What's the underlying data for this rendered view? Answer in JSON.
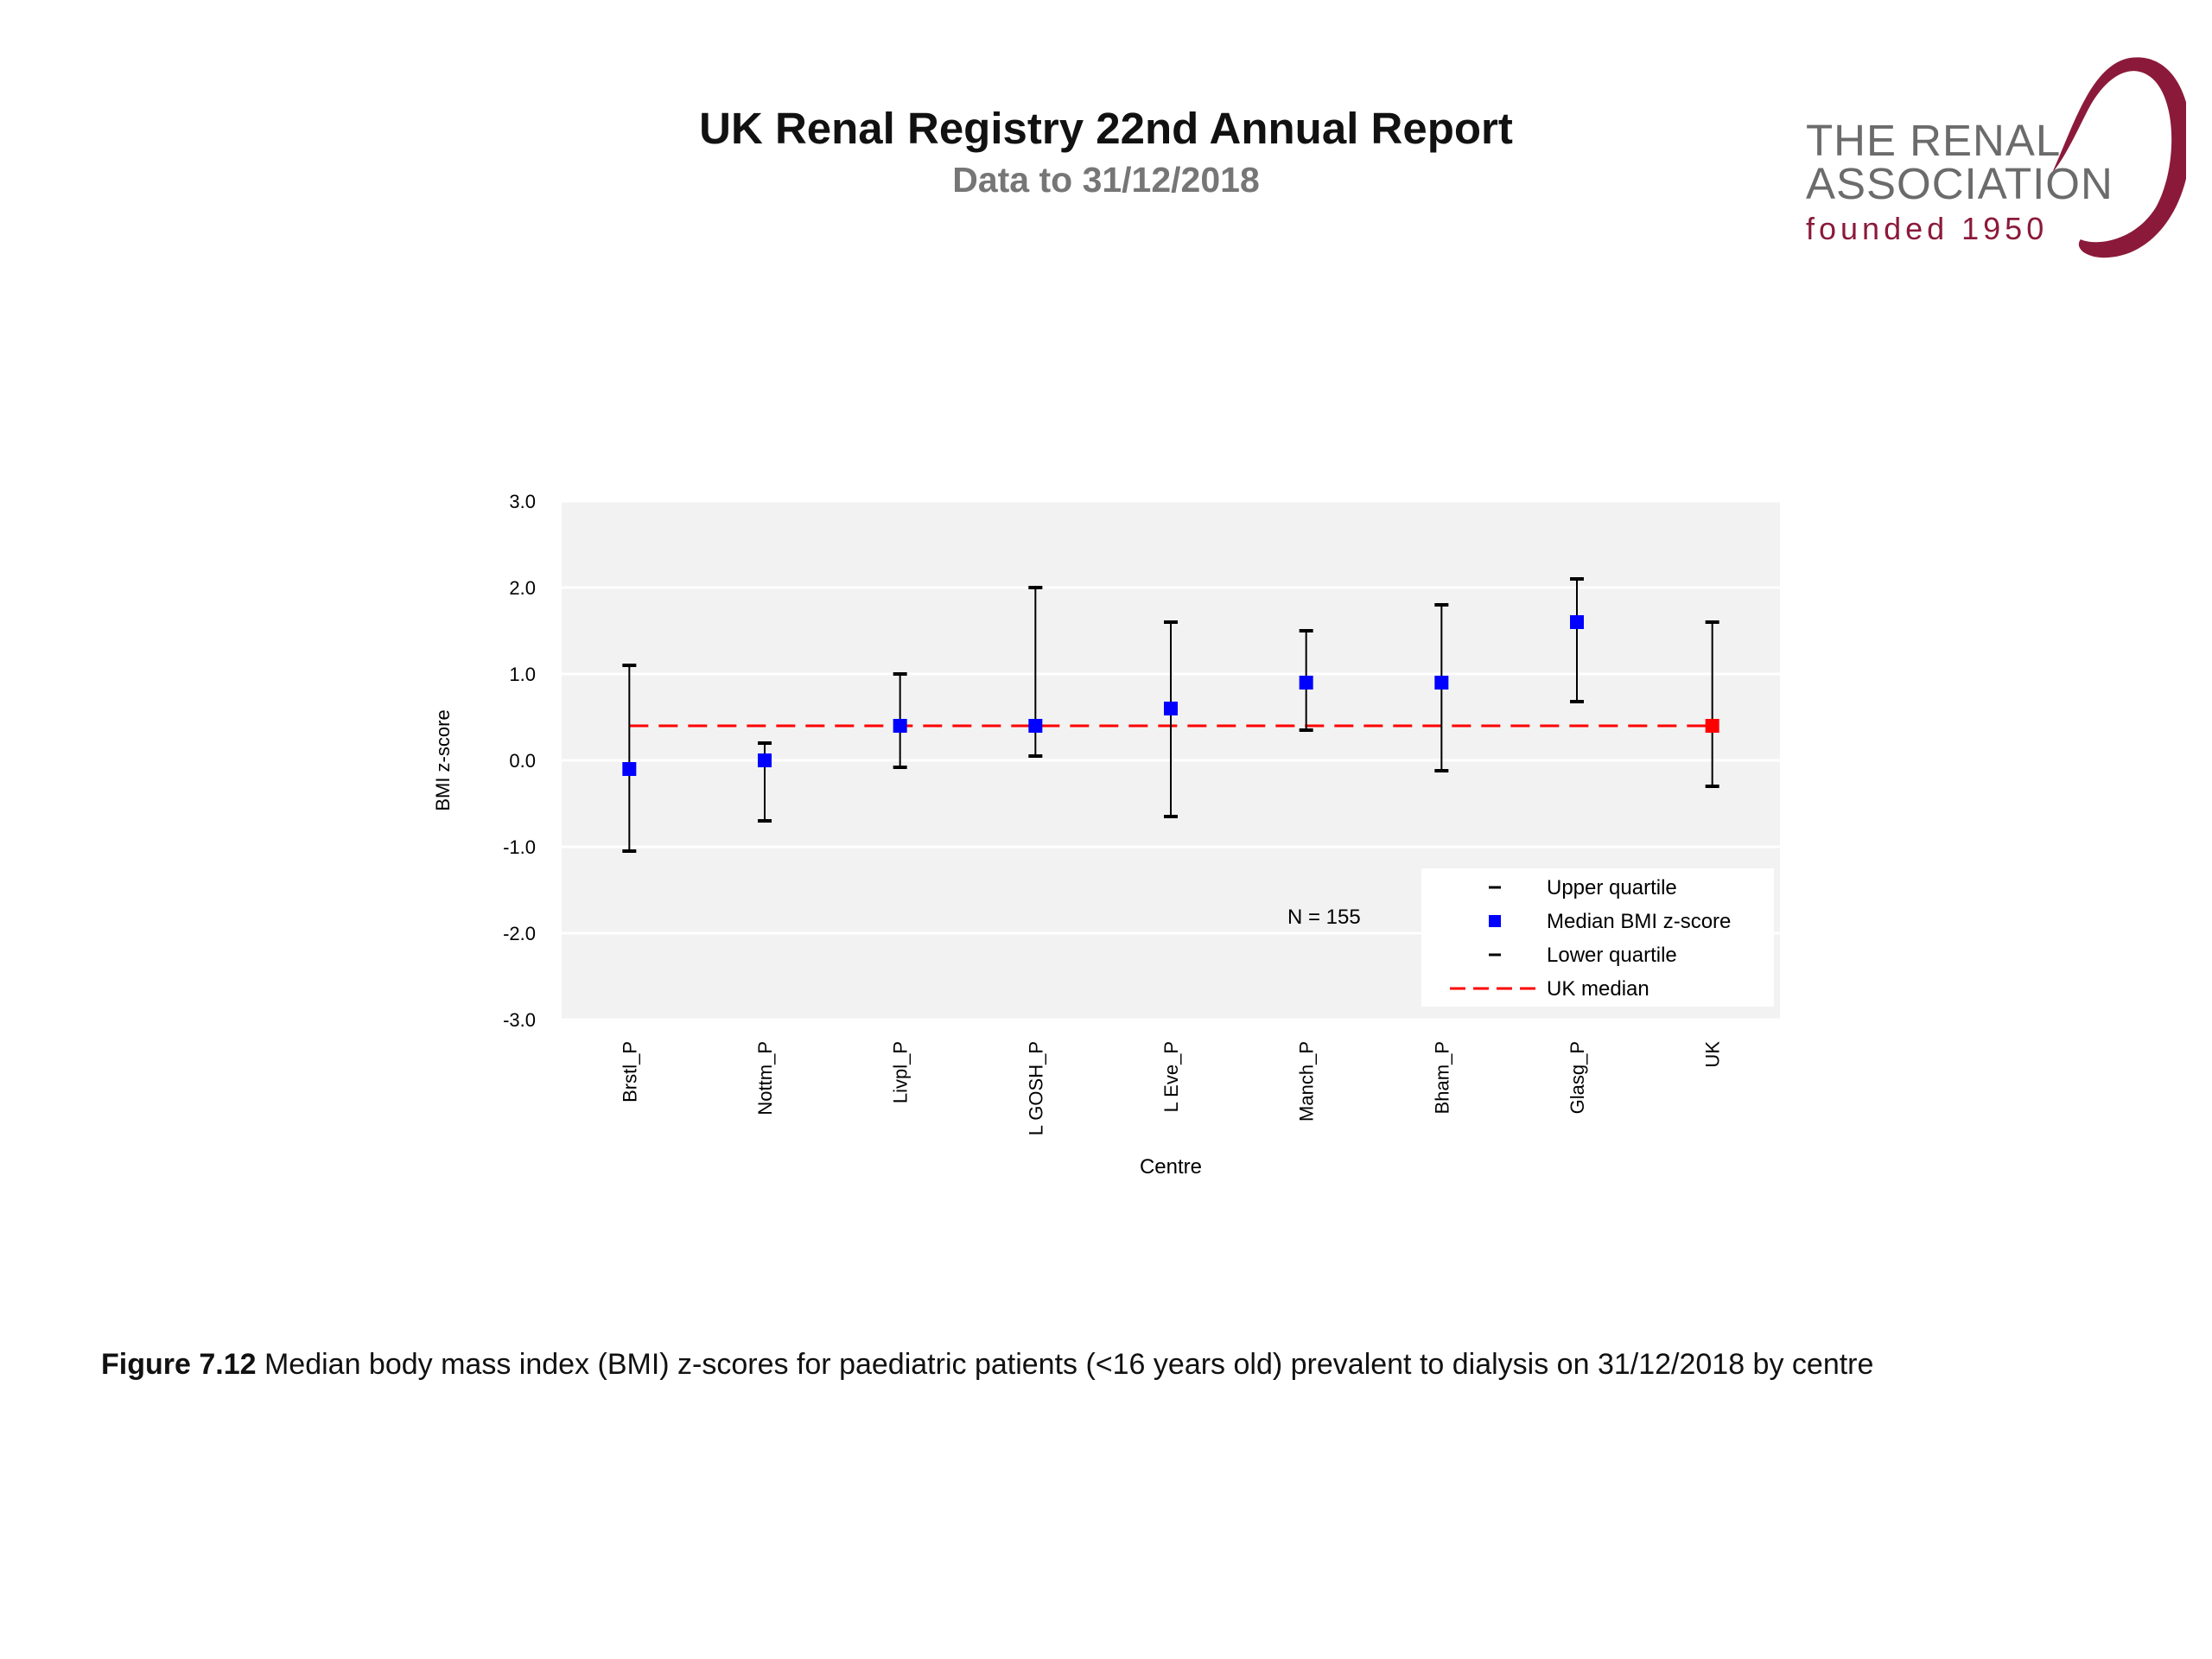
{
  "header": {
    "title": "UK Renal Registry 22nd Annual Report",
    "subtitle": "Data to 31/12/2018"
  },
  "logo": {
    "line1": "THE RENAL",
    "line2": "ASSOCIATION",
    "line3": "founded 1950",
    "accent_color": "#8b1a3a"
  },
  "chart_data": {
    "type": "scatter",
    "xlabel": "Centre",
    "ylabel": "BMI z-score",
    "ylim": [
      -3.0,
      3.0
    ],
    "yticks": [
      "3.0",
      "2.0",
      "1.0",
      "0.0",
      "-1.0",
      "-2.0",
      "-3.0"
    ],
    "ytick_values": [
      3,
      2,
      1,
      0,
      -1,
      -2,
      -3
    ],
    "grid": true,
    "categories": [
      "Brstl_P",
      "Nottm_P",
      "Livpl_P",
      "L GOSH_P",
      "L Eve_P",
      "Manch_P",
      "Bham_P",
      "Glasg_P",
      "UK"
    ],
    "series": [
      {
        "name": "Upper quartile",
        "values": [
          1.1,
          0.2,
          1.0,
          2.0,
          1.6,
          1.5,
          1.8,
          2.1,
          1.6
        ]
      },
      {
        "name": "Median BMI z-score",
        "values": [
          -0.1,
          0.0,
          0.4,
          0.4,
          0.6,
          0.9,
          0.9,
          1.6,
          0.4
        ]
      },
      {
        "name": "Lower quartile",
        "values": [
          -1.05,
          -0.7,
          -0.08,
          0.05,
          -0.65,
          0.35,
          -0.12,
          0.68,
          -0.3
        ]
      }
    ],
    "uk_median": 0.4,
    "uk_median_label": "UK median",
    "annotation": "N = 155",
    "legend_position": "bottom-right",
    "colors": {
      "median_marker": "#0000ff",
      "uk_marker": "#ff0000",
      "uk_median_line": "#ff0000",
      "plot_background": "#f2f2f2",
      "whisker": "#000000"
    }
  },
  "caption": {
    "label": "Figure 7.12",
    "text": " Median body mass index (BMI) z-scores for paediatric patients (<16 years old) prevalent to dialysis on 31/12/2018 by centre"
  }
}
